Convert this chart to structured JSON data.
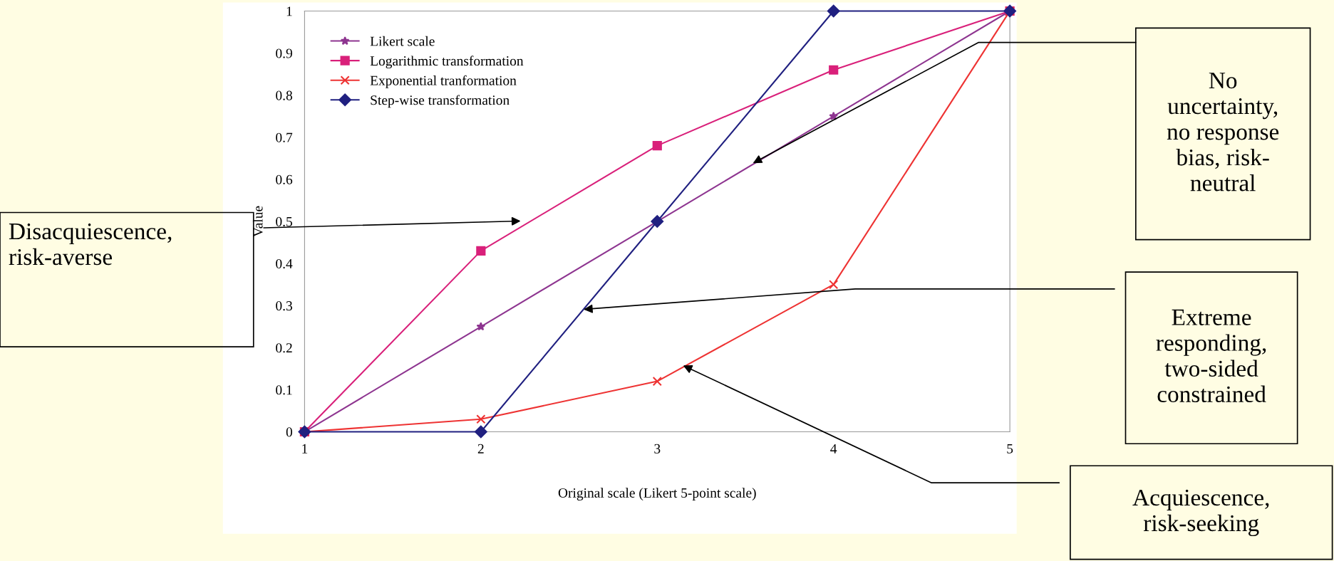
{
  "chart_data": {
    "type": "line",
    "xlabel": "Original scale (Likert 5-point scale)",
    "ylabel": "Value",
    "x": [
      1,
      2,
      3,
      4,
      5
    ],
    "xlim": [
      1,
      5
    ],
    "xticks": [
      1,
      2,
      3,
      4,
      5
    ],
    "ylim": [
      0,
      1
    ],
    "yticks": [
      0,
      0.1,
      0.2,
      0.3,
      0.4,
      0.5,
      0.6,
      0.7,
      0.8,
      0.9,
      1
    ],
    "series": [
      {
        "name": "Likert scale",
        "color": "#8e3590",
        "marker": "star",
        "values": [
          0,
          0.25,
          0.5,
          0.75,
          1
        ]
      },
      {
        "name": "Logarithmic transformation",
        "color": "#d9207a",
        "marker": "square",
        "values": [
          0,
          0.43,
          0.68,
          0.86,
          1
        ]
      },
      {
        "name": "Exponential tranformation",
        "color": "#ee3333",
        "marker": "cross",
        "values": [
          0,
          0.03,
          0.12,
          0.35,
          1
        ]
      },
      {
        "name": "Step-wise transformation",
        "color": "#202080",
        "marker": "diamond",
        "values": [
          0,
          0,
          0.5,
          1,
          1
        ]
      }
    ],
    "legend": "top left",
    "grid": false,
    "line_style": "solid",
    "annotations": [
      "Disacquiescence,\nrisk-averse",
      "No\nuncertainty,\nno response\nbias, risk-\nneutral",
      "Extreme\nresponding,\ntwo-sided\nconstrained",
      "Acquiescence,\nrisk-seeking"
    ]
  }
}
